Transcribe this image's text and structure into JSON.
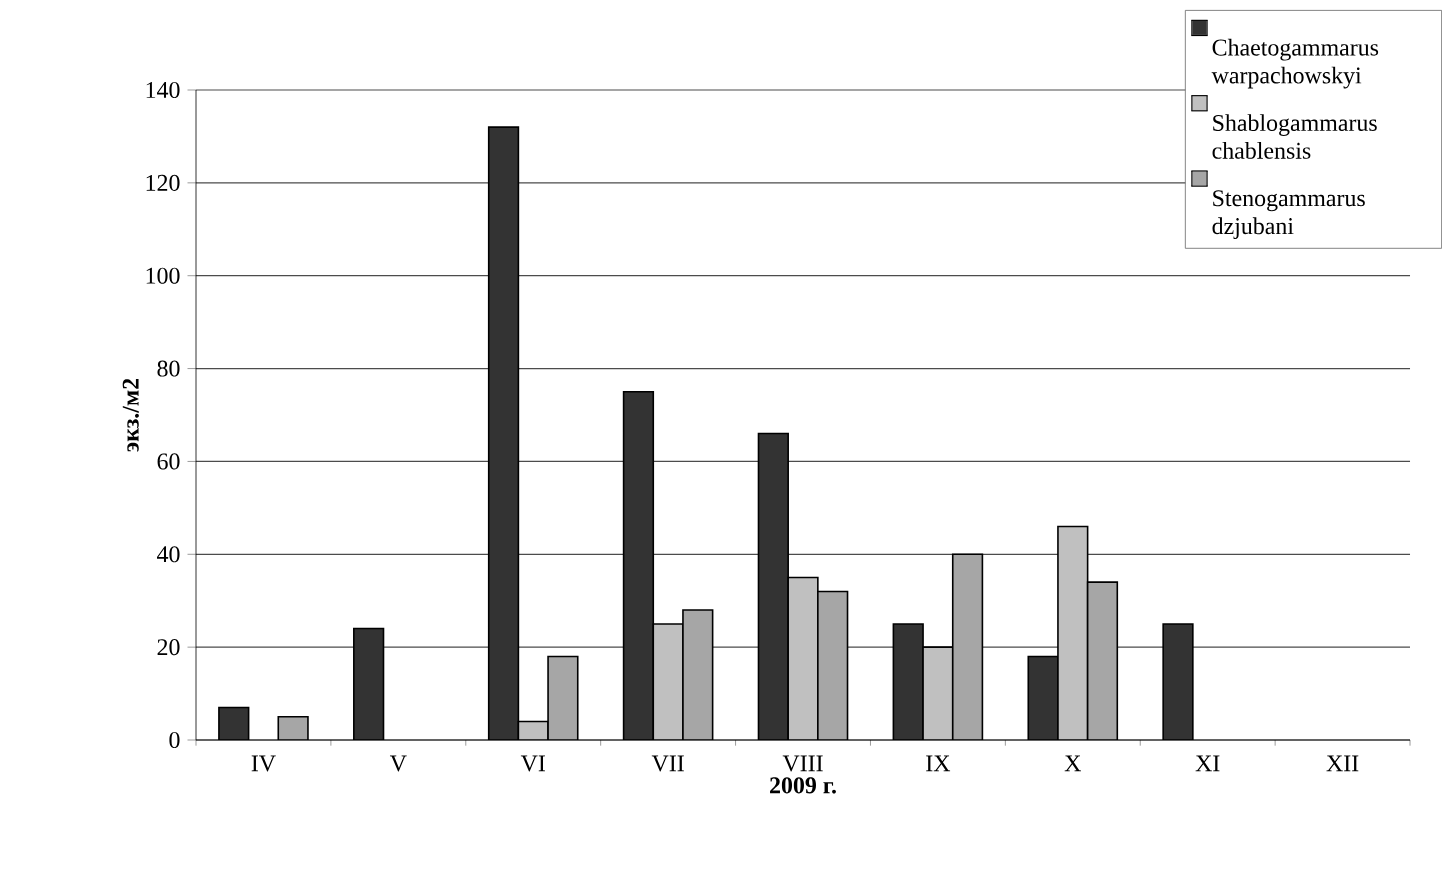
{
  "chart_data": {
    "type": "bar",
    "xlabel": "2009 г.",
    "ylabel": "экз./м2",
    "categories": [
      "IV",
      "V",
      "VI",
      "VII",
      "VIII",
      "IX",
      "X",
      "XI",
      "XII"
    ],
    "series": [
      {
        "name": "Chaetogammarus warpachowskyi",
        "color": "#333333",
        "values": [
          7,
          24,
          132,
          75,
          66,
          25,
          18,
          25,
          null
        ]
      },
      {
        "name": "Shablogammarus chablensis",
        "color": "#c0c0c0",
        "values": [
          null,
          null,
          4,
          25,
          35,
          20,
          46,
          null,
          null
        ]
      },
      {
        "name": "Stenogammarus dzjubani",
        "color": "#a6a6a6",
        "values": [
          5,
          null,
          18,
          28,
          32,
          40,
          34,
          null,
          null
        ]
      }
    ],
    "ylim": [
      0,
      140
    ],
    "yticks": [
      0,
      20,
      40,
      60,
      80,
      100,
      120,
      140
    ],
    "grid": "y",
    "legend": "top right"
  }
}
